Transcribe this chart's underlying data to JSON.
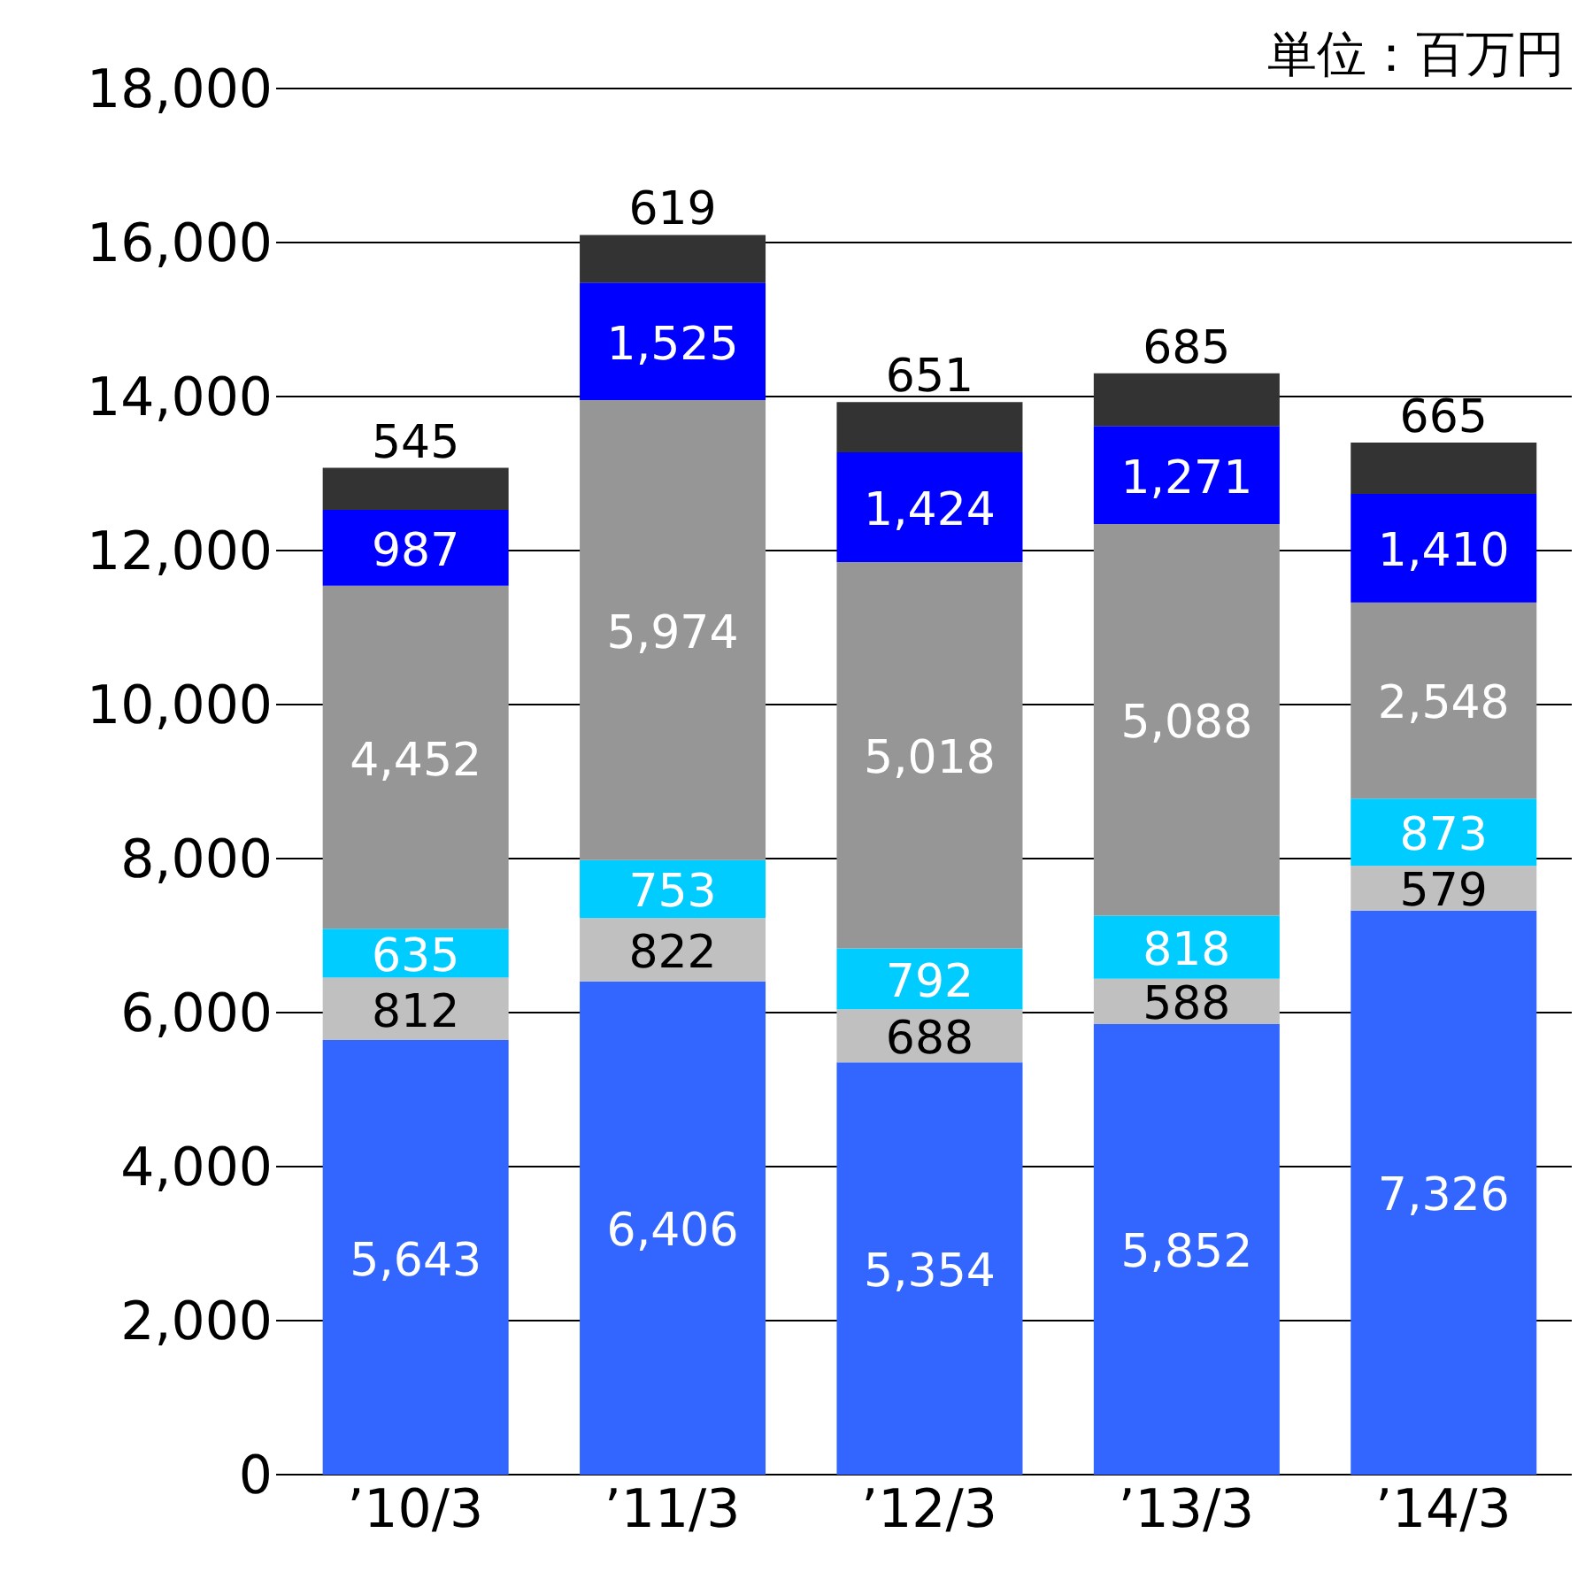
{
  "chart_data": {
    "type": "bar",
    "stacked": true,
    "categories": [
      "’10/3",
      "’11/3",
      "’12/3",
      "’13/3",
      "’14/3"
    ],
    "series": [
      {
        "color": "#3366ff",
        "values": [
          5643,
          6406,
          5354,
          5852,
          7326
        ],
        "value_labels": [
          "5,643",
          "6,406",
          "5,354",
          "5,852",
          "7,326"
        ]
      },
      {
        "color": "#c0c0c0",
        "values": [
          812,
          822,
          688,
          588,
          579
        ],
        "value_labels": [
          "812",
          "822",
          "688",
          "588",
          "579"
        ]
      },
      {
        "color": "#00ccff",
        "values": [
          635,
          753,
          792,
          818,
          873
        ],
        "value_labels": [
          "635",
          "753",
          "792",
          "818",
          "873"
        ]
      },
      {
        "color": "#969696",
        "values": [
          4452,
          5974,
          5018,
          5088,
          2548
        ],
        "value_labels": [
          "4,452",
          "5,974",
          "5,018",
          "5,088",
          "2,548"
        ]
      },
      {
        "color": "#0000ff",
        "values": [
          987,
          1525,
          1424,
          1271,
          1410
        ],
        "value_labels": [
          "987",
          "1,525",
          "1,424",
          "1,271",
          "1,410"
        ]
      },
      {
        "color": "#333333",
        "values": [
          545,
          619,
          651,
          685,
          665
        ],
        "value_labels": [
          "545",
          "619",
          "651",
          "685",
          "665"
        ]
      }
    ],
    "ylim": [
      0,
      18000
    ],
    "yticks": [
      0,
      {
        "value": 2000,
        "label": "2,000"
      },
      {
        "value": 4000,
        "label": "4,000"
      },
      {
        "value": 6000,
        "label": "6,000"
      },
      {
        "value": 8000,
        "label": "8,000"
      },
      {
        "value": 10000,
        "label": "10,000"
      },
      {
        "value": 12000,
        "label": "12,000"
      },
      {
        "value": 14000,
        "label": "14,000"
      },
      {
        "value": 16000,
        "label": "16,000"
      },
      {
        "value": 18000,
        "label": "18,000"
      }
    ],
    "grid": "y",
    "legend": false,
    "annotations": [
      "単位：百万円"
    ]
  }
}
